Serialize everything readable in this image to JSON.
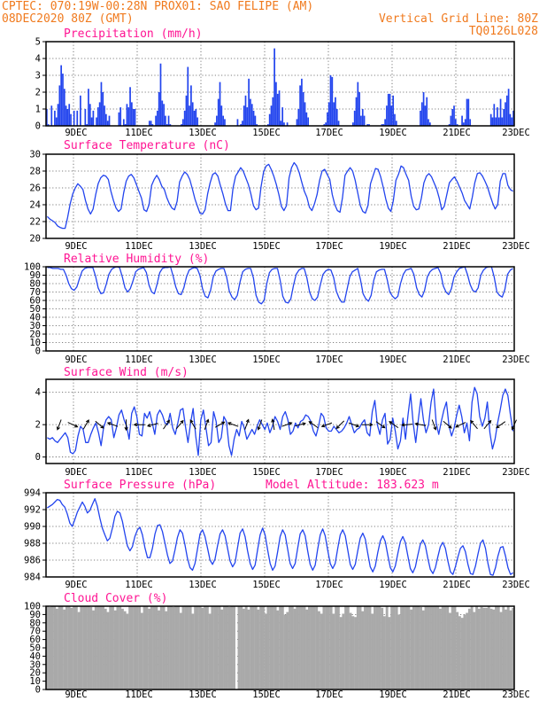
{
  "header": {
    "line1_left": "CPTEC:   070:19W-00:28N   PROX01: SAO FELIPE (AM)",
    "line2_left": "08DEC2020 80Z (GMT)",
    "line2_right": "Vertical Grid Line: 80Z",
    "line3_right": "TQ0126L028"
  },
  "colors": {
    "series": "#2244ee",
    "header": "#f07a1e",
    "title": "#ff1493",
    "cloud": "#a9a9a9"
  },
  "chart_data": [
    {
      "type": "bar",
      "title": "Precipitation (mm/h)",
      "xlabels": [
        "9DEC",
        "11DEC",
        "13DEC",
        "15DEC",
        "17DEC",
        "19DEC",
        "21DEC",
        "23DEC"
      ],
      "ylim": [
        0,
        5
      ],
      "yticks": [
        "0",
        "1",
        "2",
        "3",
        "4",
        "5"
      ],
      "grid": true,
      "values": [
        1.0,
        0.1,
        0.0,
        1.2,
        0.0,
        0.9,
        0.5,
        1.3,
        2.4,
        3.6,
        3.1,
        2.2,
        1.2,
        1.0,
        1.3,
        0.7,
        0.0,
        0.9,
        0.0,
        0.9,
        0.0,
        1.8,
        0.0,
        0.0,
        1.0,
        0.1,
        2.2,
        1.3,
        0.5,
        0.9,
        0.0,
        0.5,
        1.1,
        1.4,
        2.6,
        2.0,
        1.2,
        0.7,
        0.3,
        0.6,
        0.0,
        0.0,
        0.0,
        0.0,
        0.0,
        0.8,
        1.1,
        0.0,
        0.4,
        0.1,
        1.3,
        1.1,
        2.3,
        1.4,
        1.0,
        1.0,
        0.0,
        0.0,
        0.0,
        0.0,
        0.0,
        0.0,
        0.0,
        0.0,
        0.3,
        0.3,
        0.1,
        0.0,
        0.6,
        0.9,
        2.0,
        3.7,
        1.5,
        1.3,
        0.6,
        0.1,
        0.6,
        0.1,
        0.0,
        0.0,
        0.0,
        0.0,
        0.0,
        0.0,
        0.1,
        0.4,
        0.9,
        1.8,
        3.5,
        1.2,
        2.4,
        1.4,
        0.9,
        1.0,
        0.5,
        0.0,
        0.0,
        0.0,
        0.0,
        0.0,
        0.0,
        0.0,
        0.0,
        0.0,
        0.0,
        0.2,
        0.6,
        1.6,
        2.6,
        1.2,
        0.6,
        0.4,
        0.0,
        0.0,
        0.0,
        0.0,
        0.0,
        0.0,
        0.0,
        0.4,
        0.0,
        0.1,
        0.3,
        1.2,
        1.8,
        1.1,
        2.8,
        1.6,
        1.3,
        0.9,
        0.6,
        0.1,
        0.0,
        0.0,
        0.0,
        0.0,
        0.0,
        0.0,
        0.1,
        0.7,
        1.2,
        1.7,
        4.6,
        2.6,
        1.9,
        2.1,
        0.3,
        1.1,
        0.2,
        0.0,
        0.2,
        0.0,
        0.0,
        0.0,
        0.0,
        0.0,
        0.4,
        1.0,
        2.4,
        2.8,
        2.0,
        1.4,
        0.8,
        0.5,
        0.0,
        0.0,
        0.0,
        0.0,
        0.0,
        0.0,
        0.0,
        0.0,
        0.0,
        0.1,
        0.2,
        0.8,
        1.4,
        3.0,
        2.9,
        1.4,
        1.7,
        1.0,
        0.3,
        0.0,
        0.0,
        0.0,
        0.0,
        0.0,
        0.0,
        0.0,
        0.0,
        0.2,
        0.9,
        1.7,
        2.6,
        2.0,
        0.6,
        1.0,
        0.6,
        0.0,
        0.1,
        0.1,
        0.0,
        0.0,
        0.0,
        0.0,
        0.0,
        0.0,
        0.0,
        0.1,
        0.1,
        0.4,
        1.2,
        1.9,
        1.9,
        1.2,
        1.8,
        0.7,
        0.3,
        0.0,
        0.0,
        0.0,
        0.0,
        0.0,
        0.0,
        0.0,
        0.0,
        0.0,
        0.0,
        0.0,
        0.0,
        0.0,
        0.0,
        0.9,
        1.4,
        2.0,
        1.2,
        1.7,
        0.4,
        0.2,
        0.0,
        0.0,
        0.0,
        0.0,
        0.0,
        0.0,
        0.0,
        0.0,
        0.0,
        0.0,
        0.0,
        0.1,
        0.6,
        1.0,
        1.2,
        0.4,
        0.1,
        0.0,
        0.0,
        0.6,
        0.2,
        0.4,
        1.6,
        1.6,
        0.4,
        0.0,
        0.0,
        0.0,
        0.0,
        0.0,
        0.0,
        0.0,
        0.0,
        0.0,
        0.0,
        0.0,
        0.0,
        0.7,
        0.5,
        1.3,
        0.5,
        1.1,
        0.5,
        1.6,
        0.5,
        1.0,
        1.4,
        1.8,
        2.2,
        0.7,
        0.5,
        0.9
      ]
    },
    {
      "type": "line",
      "title": "Surface Temperature (nC)",
      "xlabels": [
        "9DEC",
        "11DEC",
        "13DEC",
        "15DEC",
        "17DEC",
        "19DEC",
        "21DEC",
        "23DEC"
      ],
      "ylim": [
        20,
        30
      ],
      "yticks": [
        "20",
        "22",
        "24",
        "26",
        "28",
        "30"
      ],
      "grid": true,
      "values": [
        22.6,
        22.3,
        22.1,
        21.9,
        21.5,
        21.3,
        21.2,
        21.2,
        22.5,
        24.1,
        25.3,
        26.0,
        26.5,
        26.2,
        25.8,
        24.5,
        23.5,
        22.9,
        23.5,
        25.2,
        26.5,
        27.2,
        27.5,
        27.4,
        27.0,
        25.6,
        24.5,
        23.6,
        23.2,
        23.5,
        25.4,
        26.8,
        27.4,
        27.6,
        27.2,
        26.4,
        25.6,
        24.8,
        23.4,
        23.2,
        24.0,
        26.3,
        27.0,
        27.5,
        27.0,
        26.2,
        25.8,
        24.8,
        24.1,
        23.6,
        23.4,
        24.4,
        26.7,
        27.4,
        27.9,
        27.6,
        27.0,
        25.9,
        24.7,
        23.8,
        23.0,
        22.9,
        23.4,
        25.3,
        26.6,
        27.6,
        27.8,
        27.4,
        26.3,
        25.3,
        24.1,
        23.3,
        23.3,
        26.0,
        27.4,
        27.9,
        28.4,
        28.0,
        27.2,
        26.4,
        25.3,
        23.9,
        23.4,
        23.6,
        26.1,
        27.9,
        28.6,
        28.8,
        28.2,
        27.4,
        26.4,
        25.2,
        23.8,
        23.3,
        23.9,
        27.2,
        28.4,
        29.0,
        28.6,
        27.8,
        26.7,
        25.6,
        24.9,
        23.7,
        23.3,
        24.1,
        25.2,
        26.9,
        28.0,
        28.2,
        27.6,
        27.0,
        25.2,
        24.0,
        23.3,
        23.1,
        24.8,
        27.5,
        28.0,
        28.4,
        28.0,
        26.9,
        25.4,
        23.9,
        23.2,
        23.0,
        23.9,
        26.5,
        27.4,
        28.3,
        28.2,
        27.3,
        26.1,
        24.7,
        23.6,
        23.2,
        24.5,
        26.9,
        27.6,
        28.6,
        28.4,
        27.6,
        26.9,
        25.0,
        23.8,
        23.4,
        23.5,
        24.8,
        26.6,
        27.4,
        27.7,
        27.3,
        26.6,
        25.9,
        24.8,
        23.4,
        23.8,
        25.2,
        26.6,
        27.0,
        27.3,
        26.8,
        26.1,
        25.4,
        24.5,
        24.0,
        23.5,
        24.9,
        26.6,
        27.7,
        27.8,
        27.4,
        26.8,
        26.1,
        25.1,
        24.2,
        23.5,
        24.0,
        26.8,
        27.7,
        27.7,
        26.3,
        25.8,
        25.6
      ]
    },
    {
      "type": "line",
      "title": "Relative Humidity (%)",
      "xlabels": [
        "9DEC",
        "11DEC",
        "13DEC",
        "15DEC",
        "17DEC",
        "19DEC",
        "21DEC",
        "23DEC"
      ],
      "ylim": [
        0,
        100
      ],
      "yticks": [
        "0",
        "10",
        "20",
        "30",
        "40",
        "50",
        "60",
        "70",
        "80",
        "90",
        "100"
      ],
      "grid": true,
      "values": [
        99,
        99,
        98,
        98,
        98,
        97,
        97,
        90,
        80,
        74,
        72,
        76,
        86,
        95,
        98,
        99,
        99,
        99,
        89,
        75,
        68,
        69,
        79,
        91,
        97,
        99,
        100,
        99,
        88,
        75,
        70,
        74,
        83,
        94,
        97,
        98,
        99,
        93,
        78,
        70,
        68,
        79,
        93,
        98,
        99,
        99,
        100,
        89,
        76,
        68,
        67,
        75,
        88,
        96,
        98,
        99,
        98,
        90,
        74,
        65,
        63,
        72,
        88,
        95,
        97,
        98,
        98,
        88,
        71,
        64,
        61,
        66,
        82,
        94,
        97,
        98,
        98,
        87,
        66,
        58,
        56,
        60,
        80,
        93,
        97,
        98,
        98,
        84,
        65,
        58,
        57,
        62,
        78,
        91,
        96,
        98,
        98,
        87,
        70,
        62,
        60,
        64,
        78,
        91,
        95,
        97,
        96,
        87,
        71,
        63,
        58,
        58,
        73,
        88,
        94,
        96,
        98,
        85,
        68,
        62,
        59,
        66,
        84,
        94,
        96,
        97,
        97,
        85,
        70,
        65,
        62,
        65,
        80,
        91,
        96,
        97,
        98,
        91,
        75,
        67,
        64,
        72,
        88,
        94,
        97,
        98,
        99,
        92,
        77,
        70,
        67,
        74,
        88,
        94,
        98,
        99,
        100,
        91,
        79,
        72,
        70,
        75,
        90,
        96,
        99,
        100,
        100,
        88,
        70,
        66,
        64,
        73,
        91,
        96,
        98
      ]
    },
    {
      "type": "line",
      "title": "Surface Wind (m/s)",
      "xlabels": [
        "9DEC",
        "11DEC",
        "13DEC",
        "15DEC",
        "17DEC",
        "19DEC",
        "21DEC",
        "23DEC"
      ],
      "ylim": [
        -0.4,
        4.8
      ],
      "yticks": [
        "0",
        "2",
        "4"
      ],
      "grid": true,
      "values": [
        1.2,
        1.1,
        1.2,
        1.0,
        0.9,
        1.1,
        1.3,
        1.5,
        1.2,
        0.3,
        0.2,
        0.4,
        1.3,
        1.9,
        1.7,
        0.9,
        0.9,
        1.4,
        1.8,
        2.1,
        1.5,
        0.7,
        1.8,
        2.3,
        2.5,
        2.3,
        1.2,
        1.8,
        2.6,
        2.9,
        2.3,
        1.9,
        1.1,
        2.7,
        3.1,
        2.5,
        1.4,
        1.3,
        2.7,
        2.4,
        2.8,
        2.1,
        1.4,
        2.6,
        2.9,
        2.6,
        2.1,
        2.0,
        2.7,
        1.8,
        1.4,
        2.1,
        2.9,
        3.0,
        1.9,
        0.9,
        2.1,
        3.0,
        1.3,
        0.1,
        2.3,
        2.9,
        1.8,
        0.7,
        0.9,
        2.8,
        2.2,
        0.9,
        1.2,
        2.5,
        2.2,
        0.7,
        0.1,
        1.1,
        1.7,
        1.3,
        2.2,
        1.8,
        1.1,
        1.4,
        1.7,
        1.4,
        1.9,
        2.3,
        2.0,
        1.7,
        2.1,
        1.5,
        1.9,
        2.5,
        2.2,
        1.7,
        2.5,
        2.8,
        2.3,
        1.4,
        1.6,
        2.1,
        1.8,
        2.2,
        2.3,
        2.6,
        2.5,
        2.2,
        1.6,
        1.3,
        1.9,
        2.7,
        2.5,
        1.8,
        1.6,
        1.6,
        1.9,
        1.7,
        1.5,
        1.6,
        1.8,
        2.1,
        2.5,
        2.0,
        1.5,
        1.7,
        1.8,
        2.1,
        2.3,
        1.5,
        1.3,
        2.8,
        3.5,
        2.0,
        1.4,
        2.3,
        2.7,
        0.8,
        1.1,
        2.4,
        1.6,
        0.5,
        1.0,
        2.4,
        1.1,
        2.6,
        3.9,
        2.1,
        0.9,
        2.3,
        3.6,
        2.3,
        1.5,
        2.0,
        3.4,
        4.2,
        2.1,
        1.4,
        2.2,
        2.9,
        3.4,
        1.9,
        1.3,
        1.8,
        2.6,
        3.2,
        2.5,
        1.5,
        2.1,
        1.0,
        3.4,
        4.3,
        3.9,
        2.5,
        1.9,
        2.4,
        3.4,
        1.5,
        0.5,
        1.1,
        2.1,
        2.9,
        3.8,
        4.2,
        3.8,
        2.6,
        1.6
      ],
      "arrows_deg": [
        200,
        115,
        30,
        130,
        290,
        180,
        270,
        255,
        35,
        40,
        330,
        20,
        60,
        290,
        20,
        200,
        350,
        70,
        75,
        305,
        250,
        225,
        110,
        90,
        125,
        305,
        265,
        280,
        160,
        130,
        245,
        320,
        40,
        235,
        205
      ]
    },
    {
      "type": "line",
      "title": "Surface Pressure (hPa)",
      "annotation": "Model Altitude: 183.623 m",
      "xlabels": [
        "9DEC",
        "11DEC",
        "13DEC",
        "15DEC",
        "17DEC",
        "19DEC",
        "21DEC",
        "23DEC"
      ],
      "ylim": [
        984,
        994
      ],
      "yticks": [
        "984",
        "986",
        "988",
        "990",
        "992",
        "994"
      ],
      "grid": true,
      "values": [
        992.2,
        992.4,
        992.6,
        992.9,
        993.2,
        993.1,
        992.6,
        992.3,
        991.5,
        990.4,
        990.0,
        990.8,
        991.7,
        992.3,
        992.9,
        992.4,
        991.6,
        991.9,
        992.6,
        993.3,
        992.4,
        991.0,
        989.8,
        989.0,
        988.3,
        988.6,
        989.8,
        991.2,
        991.8,
        991.6,
        990.6,
        989.1,
        987.7,
        987.1,
        987.6,
        988.8,
        989.6,
        989.9,
        989.0,
        987.5,
        986.3,
        986.3,
        987.4,
        989.1,
        990.1,
        990.2,
        989.4,
        988.0,
        986.6,
        985.6,
        985.9,
        987.2,
        988.7,
        989.6,
        989.2,
        987.8,
        986.2,
        985.1,
        984.8,
        985.6,
        987.3,
        989.1,
        989.6,
        988.8,
        987.4,
        986.0,
        985.5,
        986.1,
        987.7,
        989.1,
        989.6,
        988.9,
        987.4,
        985.9,
        985.2,
        985.7,
        987.5,
        989.2,
        989.7,
        988.8,
        987.1,
        985.6,
        984.9,
        985.4,
        987.2,
        989.0,
        989.8,
        989.0,
        987.2,
        985.6,
        984.8,
        985.3,
        987.0,
        988.8,
        989.6,
        989.0,
        987.3,
        985.6,
        985.0,
        985.6,
        987.4,
        989.1,
        989.6,
        988.9,
        987.1,
        985.5,
        984.8,
        985.4,
        987.3,
        989.0,
        989.7,
        988.9,
        987.2,
        985.6,
        985.0,
        985.6,
        987.4,
        989.0,
        989.6,
        988.9,
        987.2,
        985.5,
        984.9,
        985.5,
        987.1,
        988.6,
        989.2,
        988.5,
        986.8,
        985.2,
        984.6,
        985.3,
        986.9,
        988.3,
        988.9,
        988.2,
        986.6,
        985.1,
        984.6,
        985.3,
        986.8,
        988.2,
        988.8,
        988.1,
        986.5,
        985.0,
        984.5,
        985.2,
        986.6,
        987.9,
        988.4,
        987.7,
        986.2,
        984.9,
        984.4,
        985.1,
        986.4,
        987.6,
        988.1,
        987.4,
        985.9,
        984.6,
        984.3,
        985.2,
        986.4,
        987.4,
        987.7,
        987.0,
        985.5,
        984.4,
        984.3,
        985.3,
        986.7,
        988.0,
        988.4,
        987.4,
        985.6,
        984.3,
        984.2,
        985.1,
        986.5,
        987.5,
        987.6,
        986.5,
        985.1,
        984.3,
        984.5
      ]
    },
    {
      "type": "bar",
      "title": "Cloud Cover (%)",
      "xlabels": [
        "9DEC",
        "11DEC",
        "13DEC",
        "15DEC",
        "17DEC",
        "19DEC",
        "21DEC",
        "23DEC"
      ],
      "ylim": [
        0,
        100
      ],
      "yticks": [
        "0",
        "10",
        "20",
        "30",
        "40",
        "50",
        "60",
        "70",
        "80",
        "90",
        "100"
      ],
      "grid": true,
      "values": [
        100,
        99,
        100,
        100,
        97,
        100,
        100,
        96,
        100,
        100,
        98,
        100,
        100,
        93,
        100,
        100,
        100,
        100,
        99,
        95,
        100,
        100,
        100,
        100,
        97,
        93,
        100,
        100,
        95,
        100,
        100,
        97,
        94,
        91,
        100,
        100,
        100,
        100,
        100,
        92,
        100,
        100,
        97,
        100,
        100,
        100,
        95,
        100,
        100,
        94,
        100,
        100,
        99,
        100,
        100,
        92,
        100,
        100,
        100,
        100,
        91,
        100,
        100,
        100,
        98,
        100,
        100,
        91,
        100,
        100,
        100,
        100,
        96,
        100,
        100,
        99,
        100,
        100,
        0,
        100,
        100,
        97,
        100,
        96,
        100,
        100,
        100,
        96,
        100,
        100,
        91,
        100,
        100,
        100,
        100,
        95,
        100,
        100,
        90,
        93,
        100,
        100,
        97,
        100,
        100,
        100,
        100,
        96,
        100,
        100,
        100,
        100,
        94,
        91,
        100,
        100,
        100,
        100,
        91,
        100,
        100,
        87,
        91,
        100,
        100,
        92,
        88,
        87,
        100,
        100,
        94,
        100,
        100,
        100,
        91,
        100,
        100,
        100,
        98,
        88,
        100,
        87,
        100,
        100,
        100,
        90,
        100,
        100,
        100,
        100,
        96,
        100,
        100,
        100,
        99,
        95,
        100,
        100,
        100,
        100,
        100,
        100,
        97,
        100,
        100,
        100,
        92,
        100,
        100,
        93,
        88,
        86,
        90,
        92,
        97,
        100,
        93,
        100,
        97,
        99,
        98,
        98,
        100,
        97,
        96,
        100,
        100,
        93,
        100,
        96,
        100,
        95,
        98
      ]
    }
  ]
}
